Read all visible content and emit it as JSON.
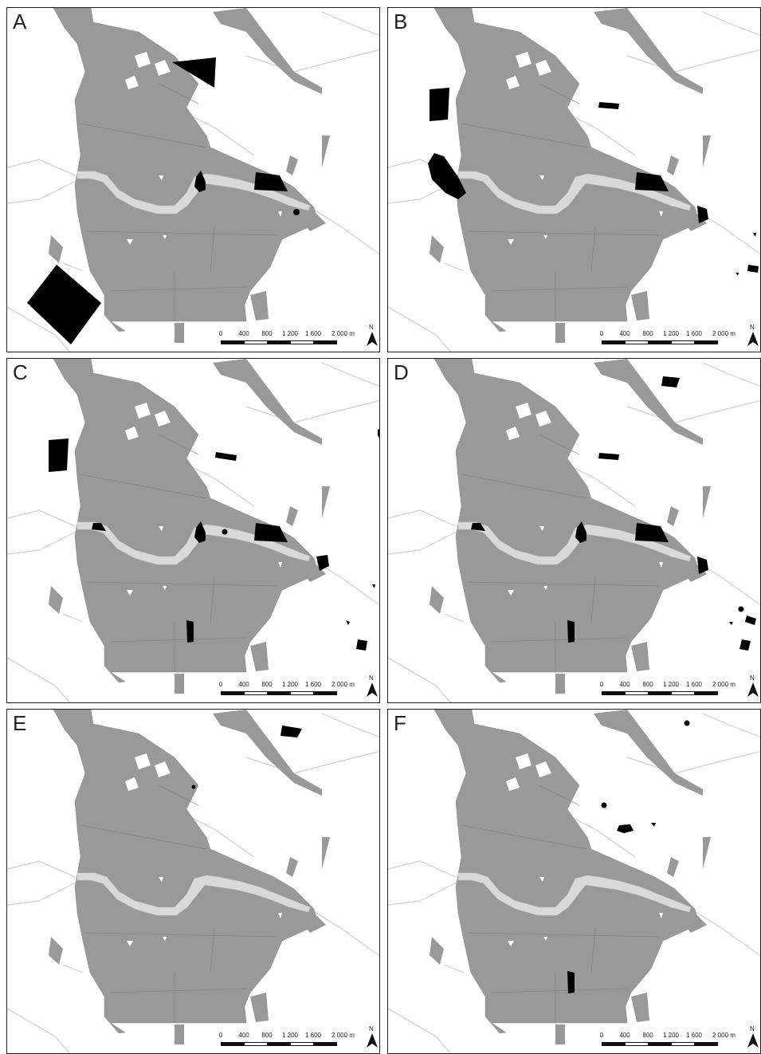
{
  "colors": {
    "land": "#999999",
    "river": "#d9d9d9",
    "highlight": "#000000",
    "road": "#cfcfcf",
    "background": "#ffffff"
  },
  "scalebar": {
    "ticks": [
      "0",
      "400",
      "800",
      "1 200",
      "1 600",
      "2 000 m"
    ]
  },
  "north_arrow": {
    "letter": "N",
    "icon": "north-arrow-icon"
  },
  "panels": [
    {
      "label": "A"
    },
    {
      "label": "B"
    },
    {
      "label": "C"
    },
    {
      "label": "D"
    },
    {
      "label": "E"
    },
    {
      "label": "F"
    }
  ]
}
